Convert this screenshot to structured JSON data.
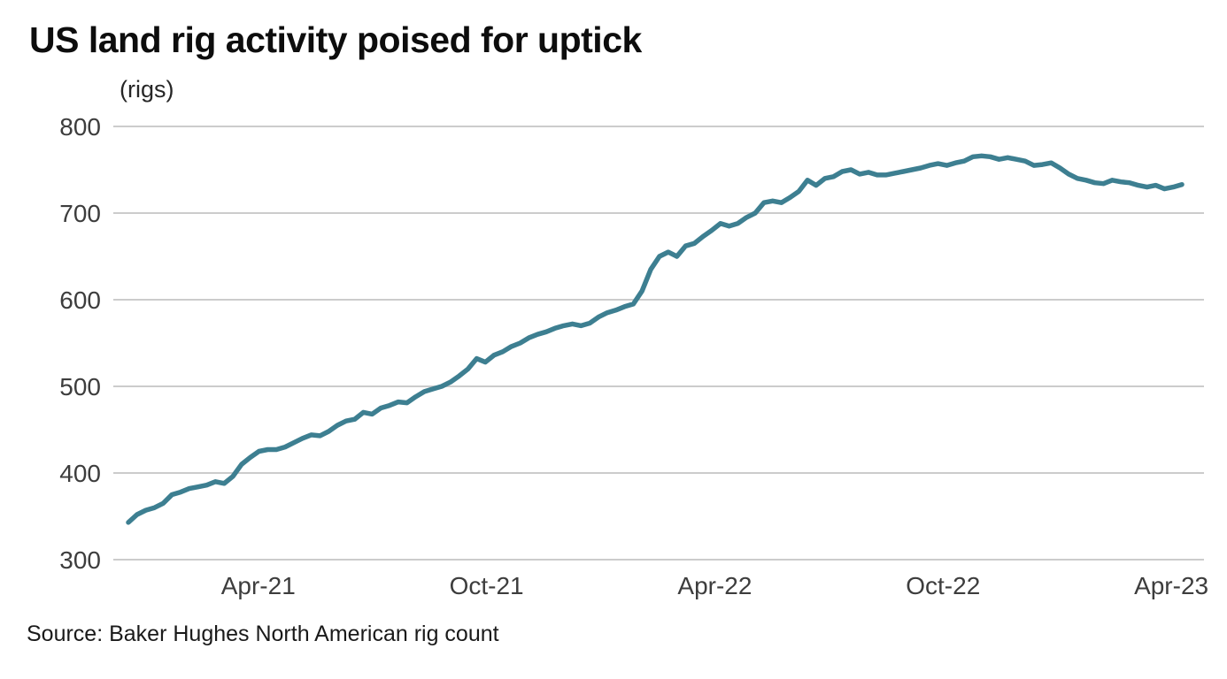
{
  "header": {
    "title": "US land rig activity poised for uptick",
    "unit_label": "(rigs)"
  },
  "footer": {
    "source": "Source: Baker Hughes North American rig count"
  },
  "colors": {
    "line": "#3d7f91",
    "gridline": "#cccccc",
    "axis_text": "#3d3d3d",
    "title_text": "#0d0d0d",
    "background": "#ffffff"
  },
  "chart_data": {
    "type": "line",
    "title": "US land rig activity poised for uptick",
    "subtitle": "",
    "xlabel": "",
    "ylabel": "(rigs)",
    "source": "Source: Baker Hughes North American rig count",
    "legend_position": "none",
    "grid": "horizontal",
    "ylim": [
      300,
      800
    ],
    "y_ticks": [
      300,
      400,
      500,
      600,
      700,
      800
    ],
    "x_range": [
      0,
      120
    ],
    "x_unit": "weeks since early Jan-21",
    "x_ticks": [
      {
        "pos": 14.8,
        "label": "Apr-21"
      },
      {
        "pos": 40.8,
        "label": "Oct-21"
      },
      {
        "pos": 66.8,
        "label": "Apr-22"
      },
      {
        "pos": 92.8,
        "label": "Oct-22"
      },
      {
        "pos": 118.8,
        "label": "Apr-23"
      }
    ],
    "series": [
      {
        "name": "US land rig count (rigs)",
        "color": "#3d7f91",
        "values": [
          343,
          352,
          357,
          360,
          365,
          375,
          378,
          382,
          384,
          386,
          390,
          388,
          396,
          410,
          418,
          425,
          427,
          427,
          430,
          435,
          440,
          444,
          443,
          448,
          455,
          460,
          462,
          470,
          468,
          475,
          478,
          482,
          481,
          488,
          494,
          497,
          500,
          505,
          512,
          520,
          532,
          528,
          536,
          540,
          546,
          550,
          556,
          560,
          563,
          567,
          570,
          572,
          570,
          573,
          580,
          585,
          588,
          592,
          595,
          610,
          635,
          650,
          655,
          650,
          662,
          665,
          673,
          680,
          688,
          685,
          688,
          695,
          700,
          712,
          714,
          712,
          718,
          725,
          738,
          732,
          740,
          742,
          748,
          750,
          745,
          747,
          744,
          744,
          746,
          748,
          750,
          752,
          755,
          757,
          755,
          758,
          760,
          765,
          766,
          765,
          762,
          764,
          762,
          760,
          755,
          756,
          758,
          752,
          745,
          740,
          738,
          735,
          734,
          738,
          736,
          735,
          732,
          730,
          732,
          728,
          730,
          733
        ]
      }
    ]
  }
}
